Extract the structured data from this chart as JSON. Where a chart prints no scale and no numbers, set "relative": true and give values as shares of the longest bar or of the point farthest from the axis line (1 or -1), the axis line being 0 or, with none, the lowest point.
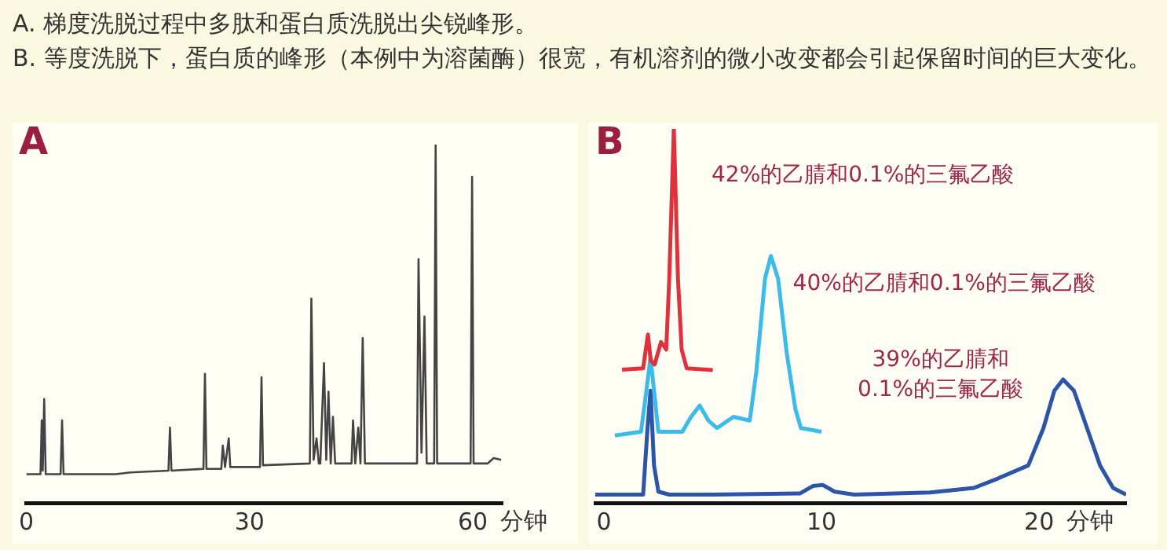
{
  "chart_data": [
    {
      "type": "line",
      "title": "A",
      "subtitle": "A. 梯度洗脱过程中多肽和蛋白质洗脱出尖锐峰形。",
      "xlabel": "分钟",
      "relative": true,
      "xlim": [
        0,
        64
      ],
      "xticks": [
        0,
        30,
        60
      ],
      "grid": false,
      "legend": false,
      "marker": "none",
      "line_style": "solid",
      "series": [
        {
          "color": "#444444",
          "x": [
            0,
            1.9,
            2.07,
            2.2,
            2.4,
            2.6,
            4.6,
            4.8,
            5.0,
            12,
            14,
            19.1,
            19.3,
            19.5,
            23.8,
            24.0,
            24.2,
            26.2,
            26.4,
            26.7,
            27.2,
            27.4,
            31.4,
            31.6,
            31.8,
            38.1,
            38.3,
            38.6,
            39.0,
            39.3,
            39.5,
            40.0,
            40.3,
            40.6,
            40.9,
            41.2,
            41.5,
            43.7,
            43.9,
            44.2,
            44.6,
            44.9,
            45.2,
            45.5,
            52.5,
            52.7,
            53.1,
            53.5,
            53.8,
            54.8,
            55.0,
            55.2,
            59.7,
            59.9,
            60.1,
            62,
            62.8,
            63.8
          ],
          "values": [
            0.08,
            0.08,
            0.23,
            0.09,
            0.29,
            0.08,
            0.08,
            0.23,
            0.08,
            0.08,
            0.085,
            0.09,
            0.21,
            0.09,
            0.095,
            0.36,
            0.095,
            0.095,
            0.16,
            0.1,
            0.18,
            0.1,
            0.1,
            0.35,
            0.105,
            0.11,
            0.57,
            0.12,
            0.18,
            0.11,
            0.11,
            0.39,
            0.12,
            0.31,
            0.11,
            0.24,
            0.11,
            0.11,
            0.23,
            0.11,
            0.21,
            0.11,
            0.46,
            0.11,
            0.11,
            0.68,
            0.14,
            0.52,
            0.11,
            0.11,
            1.0,
            0.11,
            0.11,
            0.91,
            0.11,
            0.11,
            0.125,
            0.12
          ]
        }
      ]
    },
    {
      "type": "line",
      "title": "B",
      "subtitle": "B. 等度洗脱下，蛋白质的峰形（本例中为溶菌酶）很宽，有机溶剂的微小改变都会引起保留时间的巨大变化。",
      "xlabel": "分钟",
      "relative": true,
      "xlim": [
        -0.4,
        24
      ],
      "xticks": [
        0,
        10,
        20
      ],
      "grid": false,
      "legend": false,
      "marker": "none",
      "line_style": "solid",
      "series": [
        {
          "name": "42%的乙腈和0.1%的三氟乙酸",
          "color": "#e0323c",
          "x": [
            0.83,
            1.8,
            2.02,
            2.15,
            2.33,
            2.62,
            2.86,
            3.0,
            3.21,
            3.4,
            3.57,
            3.8,
            5.0
          ],
          "values": [
            0.356,
            0.36,
            0.45,
            0.38,
            0.37,
            0.43,
            0.41,
            0.6,
            1.0,
            0.6,
            0.41,
            0.36,
            0.355
          ]
        },
        {
          "name": "40%的乙腈和0.1%的三氟乙酸",
          "color": "#3dbbe8",
          "x": [
            0.5,
            1.7,
            1.95,
            2.14,
            2.3,
            2.5,
            3.6,
            4.0,
            4.4,
            4.8,
            5.2,
            5.95,
            6.7,
            7.0,
            7.4,
            7.67,
            8.0,
            8.4,
            8.8,
            9.05,
            10.0
          ],
          "values": [
            0.18,
            0.19,
            0.3,
            0.39,
            0.3,
            0.19,
            0.19,
            0.23,
            0.26,
            0.22,
            0.2,
            0.23,
            0.22,
            0.35,
            0.6,
            0.66,
            0.6,
            0.4,
            0.25,
            0.2,
            0.19
          ]
        },
        {
          "name": "39%的乙腈和0.1%的三氟乙酸",
          "color": "#2c55a8",
          "x": [
            -0.4,
            1.8,
            2.0,
            2.14,
            2.3,
            2.5,
            3,
            5,
            9,
            9.6,
            10.05,
            10.6,
            11.5,
            15,
            17,
            18.1,
            19.5,
            20.2,
            20.7,
            21.1,
            21.6,
            22.2,
            22.8,
            23.4,
            24.0
          ],
          "values": [
            0.022,
            0.022,
            0.2,
            0.3,
            0.1,
            0.03,
            0.022,
            0.022,
            0.025,
            0.045,
            0.048,
            0.03,
            0.022,
            0.028,
            0.04,
            0.065,
            0.1,
            0.2,
            0.3,
            0.33,
            0.3,
            0.2,
            0.1,
            0.04,
            0.022
          ]
        }
      ]
    }
  ]
}
